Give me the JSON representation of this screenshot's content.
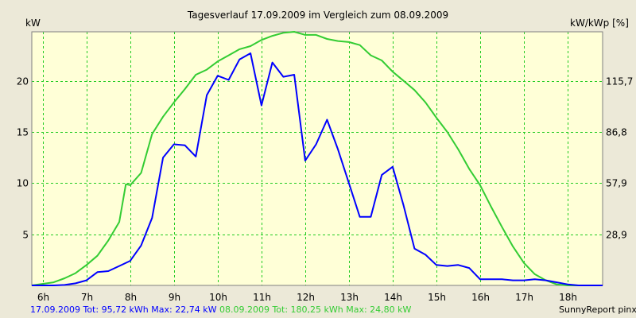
{
  "chart_data": {
    "type": "line",
    "title": "Tagesverlauf 17.09.2009 im Vergleich zum 08.09.2009",
    "ylabel_left": "kW",
    "ylabel_right": "kW/kWp [%]",
    "xlim": [
      5.75,
      18.8
    ],
    "ylim": [
      0,
      24.8
    ],
    "yticks_left": [
      5,
      10,
      15,
      20
    ],
    "yticks_right": [
      "28,9",
      "57,9",
      "86,8",
      "115,7"
    ],
    "xticks": [
      {
        "x": 6,
        "label": "6h"
      },
      {
        "x": 7,
        "label": "7h"
      },
      {
        "x": 8,
        "label": "8h"
      },
      {
        "x": 9,
        "label": "9h"
      },
      {
        "x": 10,
        "label": "10h"
      },
      {
        "x": 11,
        "label": "11h"
      },
      {
        "x": 12,
        "label": "12h"
      },
      {
        "x": 13,
        "label": "13h"
      },
      {
        "x": 14,
        "label": "14h"
      },
      {
        "x": 15,
        "label": "15h"
      },
      {
        "x": 16,
        "label": "16h"
      },
      {
        "x": 17,
        "label": "17h"
      },
      {
        "x": 18,
        "label": "18h"
      }
    ],
    "grid": true,
    "series": [
      {
        "name": "17.09.2009",
        "color": "#0000ff",
        "x": [
          5.75,
          6.25,
          6.5,
          6.75,
          7.0,
          7.25,
          7.5,
          7.75,
          8.0,
          8.25,
          8.5,
          8.75,
          9.0,
          9.25,
          9.5,
          9.75,
          10.0,
          10.25,
          10.5,
          10.75,
          11.0,
          11.25,
          11.5,
          11.75,
          12.0,
          12.25,
          12.5,
          12.75,
          13.0,
          13.25,
          13.5,
          13.75,
          14.0,
          14.25,
          14.5,
          14.75,
          15.0,
          15.25,
          15.5,
          15.75,
          16.0,
          16.25,
          16.5,
          16.75,
          17.0,
          17.25,
          17.5,
          17.75,
          18.0,
          18.25,
          18.5,
          18.8
        ],
        "y": [
          0,
          0,
          0.05,
          0.2,
          0.5,
          1.3,
          1.4,
          1.9,
          2.4,
          3.9,
          6.6,
          12.5,
          13.8,
          13.7,
          12.6,
          18.6,
          20.5,
          20.1,
          22.1,
          22.7,
          17.6,
          21.8,
          20.4,
          20.6,
          12.2,
          13.8,
          16.2,
          13.3,
          10,
          6.7,
          6.7,
          10.8,
          11.6,
          7.8,
          3.6,
          3,
          2,
          1.9,
          2,
          1.7,
          0.6,
          0.6,
          0.6,
          0.5,
          0.5,
          0.6,
          0.5,
          0.3,
          0.1,
          0,
          0,
          0
        ]
      },
      {
        "name": "08.09.2009",
        "color": "#33cc33",
        "x": [
          5.75,
          6.25,
          6.5,
          6.75,
          7.0,
          7.25,
          7.5,
          7.75,
          7.9,
          8.0,
          8.25,
          8.5,
          8.75,
          9.0,
          9.25,
          9.5,
          9.75,
          10.0,
          10.25,
          10.5,
          10.75,
          11.0,
          11.25,
          11.5,
          11.75,
          12.0,
          12.25,
          12.5,
          12.75,
          13.0,
          13.25,
          13.5,
          13.75,
          14.0,
          14.25,
          14.5,
          14.75,
          15.0,
          15.25,
          15.5,
          15.75,
          16.0,
          16.25,
          16.5,
          16.75,
          17.0,
          17.25,
          17.5,
          17.75,
          18.0,
          18.25,
          18.5,
          18.8
        ],
        "y": [
          0,
          0.3,
          0.7,
          1.2,
          2,
          2.9,
          4.4,
          6.2,
          9.9,
          9.8,
          11,
          14.8,
          16.5,
          17.9,
          19.2,
          20.6,
          21.1,
          21.9,
          22.5,
          23.1,
          23.4,
          24,
          24.4,
          24.7,
          24.8,
          24.5,
          24.5,
          24.1,
          23.9,
          23.8,
          23.5,
          22.5,
          22,
          20.9,
          20,
          19.1,
          17.9,
          16.4,
          15,
          13.3,
          11.4,
          9.8,
          7.7,
          5.7,
          3.8,
          2.2,
          1.1,
          0.5,
          0.1,
          0,
          0,
          0,
          0
        ]
      }
    ]
  },
  "legend": {
    "series1": "17.09.2009 Tot: 95,72 kWh Max: 22,74 kW",
    "series2": "08.09.2009 Tot: 180,25 kWh Max: 24,80 kW"
  },
  "credit": "SunnyReport pinxit"
}
